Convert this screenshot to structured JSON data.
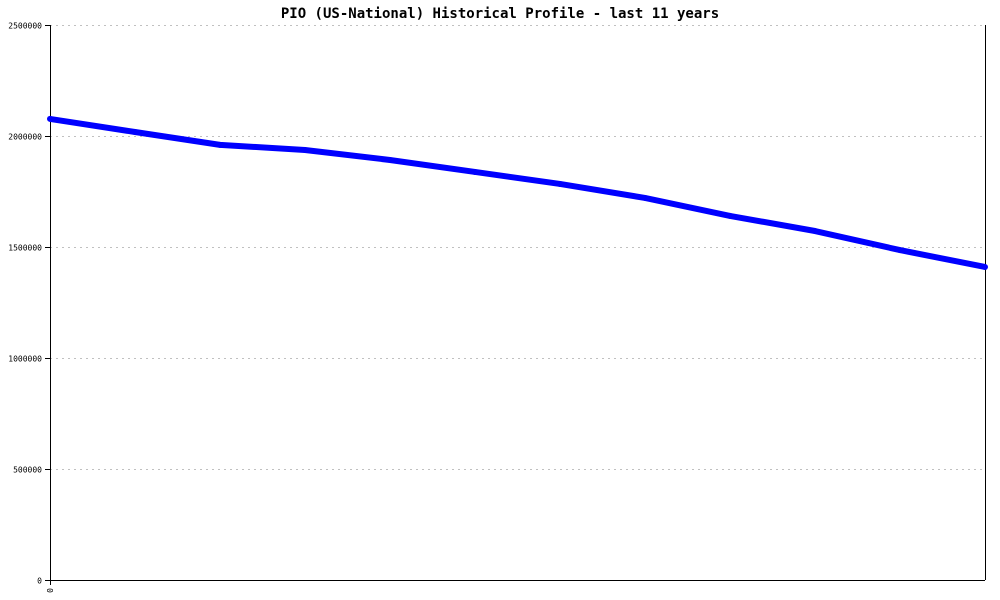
{
  "chart_data": {
    "type": "line",
    "title": "PIO (US-National) Historical Profile - last 11 years",
    "xlabel": "",
    "ylabel": "",
    "ylim": [
      0,
      2500000
    ],
    "yticks": [
      0,
      500000,
      1000000,
      1500000,
      2000000,
      2500000
    ],
    "ytick_labels": [
      "0",
      "500000",
      "1000000",
      "1500000",
      "2000000",
      "2500000"
    ],
    "xtick_labels": [
      "0"
    ],
    "grid": true,
    "series": [
      {
        "name": "PIO",
        "color": "#0000ff",
        "x": [
          0,
          1,
          2,
          3,
          4,
          5,
          6,
          7,
          8,
          9,
          10,
          11
        ],
        "values": [
          2077000,
          2018000,
          1960000,
          1937000,
          1892000,
          1838000,
          1784000,
          1721000,
          1640000,
          1572000,
          1486000,
          1410000
        ]
      }
    ]
  }
}
